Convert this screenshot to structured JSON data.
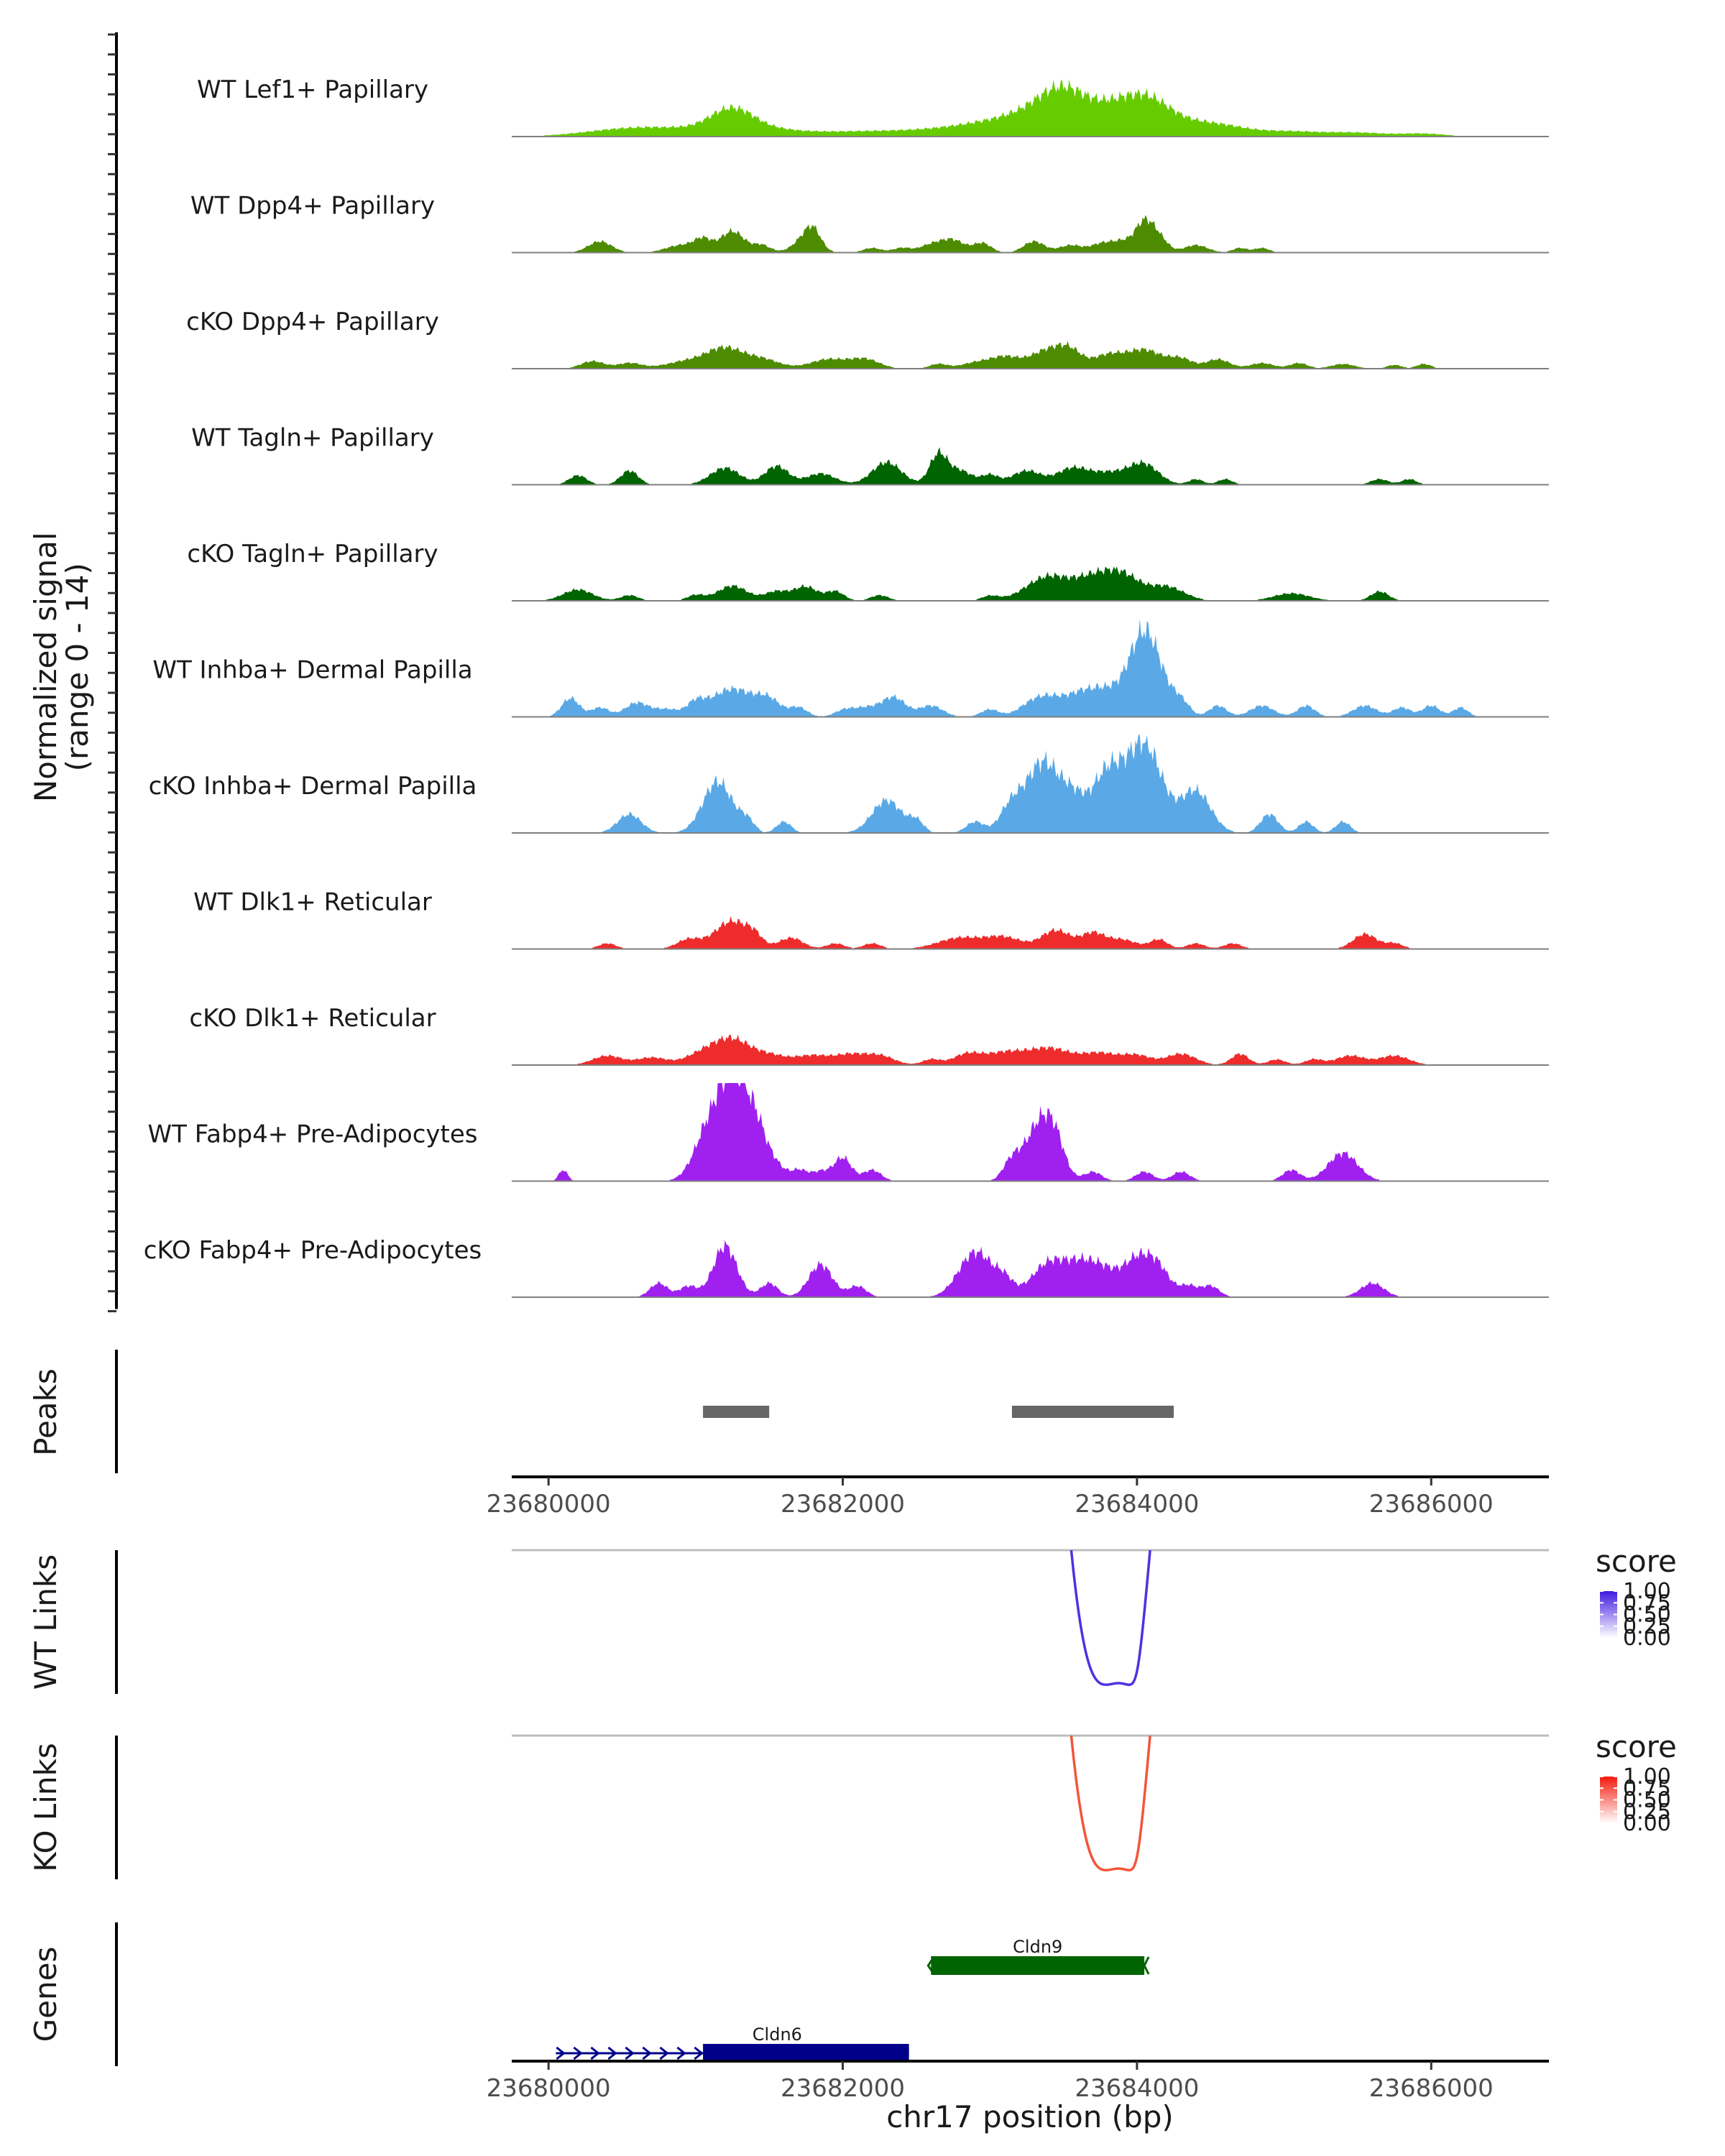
{
  "chart_data": {
    "type": "area",
    "title": "",
    "ylabel": "Normalized signal\n(range 0 - 14)",
    "xlabel": "chr17 position (bp)",
    "chrom": "chr17",
    "xlim": [
      23679750,
      23686800
    ],
    "ylim": [
      0,
      14
    ],
    "x_ticks": [
      23680000,
      23682000,
      23684000,
      23686000
    ],
    "x_tick_labels": [
      "23680000",
      "23682000",
      "23684000",
      "23686000"
    ],
    "tracks": [
      {
        "name": "WT Lef1+ Papillary",
        "color": "#66CC00",
        "peaks": [
          [
            23680550,
            300,
            0.8
          ],
          [
            23680950,
            250,
            0.5
          ],
          [
            23681250,
            150,
            2.6
          ],
          [
            23681550,
            200,
            0.6
          ],
          [
            23682000,
            250,
            0.4
          ],
          [
            23682400,
            250,
            0.4
          ],
          [
            23682800,
            250,
            0.6
          ],
          [
            23683100,
            250,
            1.1
          ],
          [
            23683350,
            200,
            1.8
          ],
          [
            23683500,
            150,
            2.8
          ],
          [
            23683750,
            200,
            1.8
          ],
          [
            23683950,
            180,
            2.0
          ],
          [
            23684100,
            150,
            2.0
          ],
          [
            23684350,
            200,
            1.0
          ],
          [
            23684600,
            200,
            0.8
          ],
          [
            23685050,
            200,
            0.5
          ],
          [
            23685500,
            200,
            0.4
          ],
          [
            23685950,
            150,
            0.3
          ]
        ]
      },
      {
        "name": "WT Dpp4+ Papillary",
        "color": "#4D8C00",
        "peaks": [
          [
            23680350,
            80,
            1.2
          ],
          [
            23680900,
            100,
            0.8
          ],
          [
            23681050,
            60,
            1.3
          ],
          [
            23681250,
            80,
            2.3
          ],
          [
            23681450,
            60,
            0.8
          ],
          [
            23681750,
            80,
            1.6
          ],
          [
            23681800,
            50,
            1.5
          ],
          [
            23682200,
            60,
            0.5
          ],
          [
            23682400,
            60,
            0.5
          ],
          [
            23682600,
            80,
            0.8
          ],
          [
            23682750,
            80,
            1.3
          ],
          [
            23682950,
            60,
            1.0
          ],
          [
            23683300,
            70,
            1.2
          ],
          [
            23683550,
            80,
            0.8
          ],
          [
            23683750,
            70,
            0.8
          ],
          [
            23683900,
            80,
            1.2
          ],
          [
            23684050,
            60,
            3.0
          ],
          [
            23684150,
            60,
            1.5
          ],
          [
            23684400,
            80,
            0.8
          ],
          [
            23684700,
            50,
            0.5
          ],
          [
            23684850,
            50,
            0.5
          ]
        ]
      },
      {
        "name": "cKO Dpp4+ Papillary",
        "color": "#4D8C00",
        "peaks": [
          [
            23680300,
            80,
            0.8
          ],
          [
            23680550,
            80,
            0.6
          ],
          [
            23680950,
            150,
            0.8
          ],
          [
            23681200,
            120,
            2.0
          ],
          [
            23681450,
            120,
            1.0
          ],
          [
            23681900,
            120,
            1.0
          ],
          [
            23682150,
            100,
            1.0
          ],
          [
            23682650,
            60,
            0.5
          ],
          [
            23682900,
            100,
            0.6
          ],
          [
            23683100,
            100,
            1.2
          ],
          [
            23683400,
            120,
            2.0
          ],
          [
            23683550,
            80,
            1.4
          ],
          [
            23683800,
            100,
            1.4
          ],
          [
            23684050,
            120,
            2.0
          ],
          [
            23684300,
            80,
            1.0
          ],
          [
            23684550,
            80,
            1.0
          ],
          [
            23684850,
            80,
            0.6
          ],
          [
            23685100,
            60,
            0.6
          ],
          [
            23685400,
            80,
            0.5
          ],
          [
            23685750,
            50,
            0.4
          ],
          [
            23685950,
            50,
            0.5
          ]
        ]
      },
      {
        "name": "WT Tagln+ Papillary",
        "color": "#006400",
        "peaks": [
          [
            23680200,
            60,
            1.0
          ],
          [
            23680550,
            60,
            1.5
          ],
          [
            23681200,
            100,
            1.8
          ],
          [
            23681550,
            80,
            2.0
          ],
          [
            23681850,
            100,
            1.2
          ],
          [
            23682300,
            100,
            2.4
          ],
          [
            23682650,
            60,
            3.2
          ],
          [
            23682800,
            80,
            1.5
          ],
          [
            23683000,
            60,
            1.0
          ],
          [
            23683250,
            100,
            1.5
          ],
          [
            23683550,
            100,
            1.5
          ],
          [
            23683800,
            150,
            1.3
          ],
          [
            23684050,
            100,
            2.0
          ],
          [
            23684400,
            50,
            0.6
          ],
          [
            23684600,
            50,
            0.6
          ],
          [
            23685650,
            60,
            0.6
          ],
          [
            23685850,
            50,
            0.6
          ]
        ]
      },
      {
        "name": "cKO Tagln+ Papillary",
        "color": "#006400",
        "peaks": [
          [
            23680200,
            100,
            1.2
          ],
          [
            23680550,
            60,
            0.6
          ],
          [
            23681000,
            60,
            0.6
          ],
          [
            23681250,
            100,
            1.6
          ],
          [
            23681550,
            80,
            1.0
          ],
          [
            23681750,
            80,
            1.5
          ],
          [
            23681950,
            60,
            1.0
          ],
          [
            23682250,
            60,
            0.6
          ],
          [
            23683000,
            60,
            0.5
          ],
          [
            23683400,
            150,
            2.6
          ],
          [
            23683700,
            120,
            2.0
          ],
          [
            23683900,
            120,
            2.6
          ],
          [
            23684200,
            120,
            1.5
          ],
          [
            23685050,
            120,
            0.8
          ],
          [
            23685650,
            60,
            1.0
          ]
        ]
      },
      {
        "name": "WT Inhba+ Dermal Papilla",
        "color": "#5AA9E6",
        "peaks": [
          [
            23680150,
            60,
            2.0
          ],
          [
            23680350,
            60,
            1.0
          ],
          [
            23680600,
            80,
            1.5
          ],
          [
            23680800,
            80,
            0.8
          ],
          [
            23681000,
            60,
            1.2
          ],
          [
            23681250,
            150,
            3.0
          ],
          [
            23681500,
            80,
            1.5
          ],
          [
            23681700,
            60,
            1.0
          ],
          [
            23682000,
            60,
            0.5
          ],
          [
            23682150,
            100,
            1.0
          ],
          [
            23682350,
            80,
            2.0
          ],
          [
            23682600,
            80,
            1.2
          ],
          [
            23683000,
            60,
            0.8
          ],
          [
            23683300,
            100,
            1.5
          ],
          [
            23683450,
            100,
            1.5
          ],
          [
            23683650,
            100,
            2.5
          ],
          [
            23683800,
            80,
            1.8
          ],
          [
            23684000,
            100,
            5.0
          ],
          [
            23684100,
            100,
            5.5
          ],
          [
            23684300,
            60,
            1.5
          ],
          [
            23684550,
            60,
            1.2
          ],
          [
            23684850,
            80,
            1.2
          ],
          [
            23685150,
            60,
            1.2
          ],
          [
            23685550,
            80,
            1.2
          ],
          [
            23685800,
            60,
            1.0
          ],
          [
            23686000,
            60,
            1.2
          ],
          [
            23686200,
            50,
            1.0
          ]
        ]
      },
      {
        "name": "cKO Inhba+ Dermal Papilla",
        "color": "#5AA9E6",
        "peaks": [
          [
            23680550,
            80,
            2.0
          ],
          [
            23681150,
            100,
            5.5
          ],
          [
            23681350,
            50,
            1.2
          ],
          [
            23681600,
            50,
            1.2
          ],
          [
            23682300,
            100,
            3.5
          ],
          [
            23682500,
            50,
            1.2
          ],
          [
            23682900,
            60,
            1.2
          ],
          [
            23683150,
            80,
            3.0
          ],
          [
            23683350,
            100,
            7.0
          ],
          [
            23683550,
            100,
            4.0
          ],
          [
            23683800,
            100,
            6.0
          ],
          [
            23684050,
            120,
            9.5
          ],
          [
            23684400,
            100,
            4.5
          ],
          [
            23684900,
            60,
            2.0
          ],
          [
            23685150,
            50,
            1.2
          ],
          [
            23685400,
            50,
            1.2
          ]
        ]
      },
      {
        "name": "WT Dlk1+ Reticular",
        "color": "#EE2C2C",
        "peaks": [
          [
            23680400,
            60,
            0.6
          ],
          [
            23680950,
            80,
            1.0
          ],
          [
            23681250,
            120,
            3.0
          ],
          [
            23681400,
            50,
            0.8
          ],
          [
            23681650,
            80,
            1.2
          ],
          [
            23681950,
            60,
            0.6
          ],
          [
            23682200,
            60,
            0.6
          ],
          [
            23682800,
            150,
            1.2
          ],
          [
            23683100,
            120,
            1.2
          ],
          [
            23683450,
            100,
            2.0
          ],
          [
            23683700,
            80,
            1.6
          ],
          [
            23683900,
            100,
            1.0
          ],
          [
            23684150,
            60,
            1.0
          ],
          [
            23684400,
            60,
            0.6
          ],
          [
            23684650,
            60,
            0.6
          ],
          [
            23685550,
            80,
            1.6
          ],
          [
            23685750,
            60,
            0.6
          ]
        ]
      },
      {
        "name": "cKO Dlk1+ Reticular",
        "color": "#EE2C2C",
        "peaks": [
          [
            23680400,
            100,
            1.0
          ],
          [
            23680700,
            100,
            0.8
          ],
          [
            23681050,
            120,
            1.2
          ],
          [
            23681250,
            120,
            2.5
          ],
          [
            23681500,
            120,
            1.0
          ],
          [
            23681800,
            120,
            1.0
          ],
          [
            23682050,
            100,
            1.0
          ],
          [
            23682250,
            100,
            1.0
          ],
          [
            23682600,
            60,
            0.6
          ],
          [
            23682850,
            100,
            1.2
          ],
          [
            23683100,
            120,
            1.2
          ],
          [
            23683400,
            150,
            1.8
          ],
          [
            23683750,
            120,
            1.2
          ],
          [
            23684000,
            100,
            1.0
          ],
          [
            23684300,
            100,
            1.2
          ],
          [
            23684700,
            60,
            1.2
          ],
          [
            23684950,
            60,
            0.6
          ],
          [
            23685200,
            60,
            0.6
          ],
          [
            23685450,
            100,
            1.0
          ],
          [
            23685750,
            100,
            1.0
          ]
        ]
      },
      {
        "name": "WT Fabp4+ Pre-Adipocytes",
        "color": "#A020F0",
        "peaks": [
          [
            23680100,
            30,
            1.2
          ],
          [
            23681100,
            100,
            6.0
          ],
          [
            23681250,
            80,
            9.5
          ],
          [
            23681400,
            80,
            6.5
          ],
          [
            23681550,
            60,
            1.2
          ],
          [
            23681700,
            60,
            1.2
          ],
          [
            23681850,
            60,
            1.0
          ],
          [
            23682000,
            60,
            2.5
          ],
          [
            23682200,
            60,
            1.2
          ],
          [
            23683150,
            60,
            2.0
          ],
          [
            23683350,
            100,
            6.5
          ],
          [
            23683450,
            60,
            2.0
          ],
          [
            23683700,
            60,
            1.0
          ],
          [
            23684050,
            60,
            1.0
          ],
          [
            23684300,
            60,
            1.0
          ],
          [
            23685050,
            60,
            1.2
          ],
          [
            23685400,
            100,
            3.0
          ]
        ]
      },
      {
        "name": "cKO Fabp4+ Pre-Adipocytes",
        "color": "#A020F0",
        "peaks": [
          [
            23680750,
            60,
            1.5
          ],
          [
            23680950,
            60,
            1.2
          ],
          [
            23681200,
            80,
            5.5
          ],
          [
            23681500,
            60,
            1.5
          ],
          [
            23681850,
            80,
            3.5
          ],
          [
            23682100,
            60,
            1.2
          ],
          [
            23682850,
            100,
            2.5
          ],
          [
            23682950,
            100,
            3.0
          ],
          [
            23683100,
            60,
            1.5
          ],
          [
            23683400,
            120,
            3.5
          ],
          [
            23683650,
            120,
            3.5
          ],
          [
            23683800,
            80,
            1.2
          ],
          [
            23684000,
            100,
            4.0
          ],
          [
            23684150,
            80,
            2.5
          ],
          [
            23684350,
            60,
            1.2
          ],
          [
            23684500,
            60,
            1.2
          ],
          [
            23685600,
            80,
            1.5
          ]
        ]
      }
    ],
    "peaks_track": {
      "label": "Peaks",
      "color": "#666666",
      "regions": [
        [
          23681050,
          23681500
        ],
        [
          23683150,
          23684250
        ]
      ]
    },
    "links_tracks": [
      {
        "label": "WT Links",
        "legend_title": "score",
        "color": "#5030E0",
        "gradient_high": "#3F1BE0",
        "from": 23683700,
        "to": 23684050,
        "legend_ticks": [
          "1.00",
          "0.75",
          "0.50",
          "0.25",
          "0.00"
        ]
      },
      {
        "label": "KO Links",
        "legend_title": "score",
        "color": "#F2553A",
        "gradient_high": "#F21A0C",
        "from": 23683700,
        "to": 23684050,
        "legend_ticks": [
          "1.00",
          "0.75",
          "0.50",
          "0.25",
          "0.00"
        ]
      }
    ],
    "genes_track": {
      "label": "Genes",
      "genes": [
        {
          "name": "Cldn9",
          "color": "#006400",
          "strand": "-",
          "start": 23682600,
          "end": 23684050,
          "cds_start": 23682600,
          "cds_end": 23684050,
          "row": 0
        },
        {
          "name": "Cldn6",
          "color": "#00008B",
          "strand": "+",
          "start": 23680050,
          "end": 23682450,
          "cds_start": 23681050,
          "cds_end": 23682450,
          "row": 1
        }
      ]
    }
  }
}
